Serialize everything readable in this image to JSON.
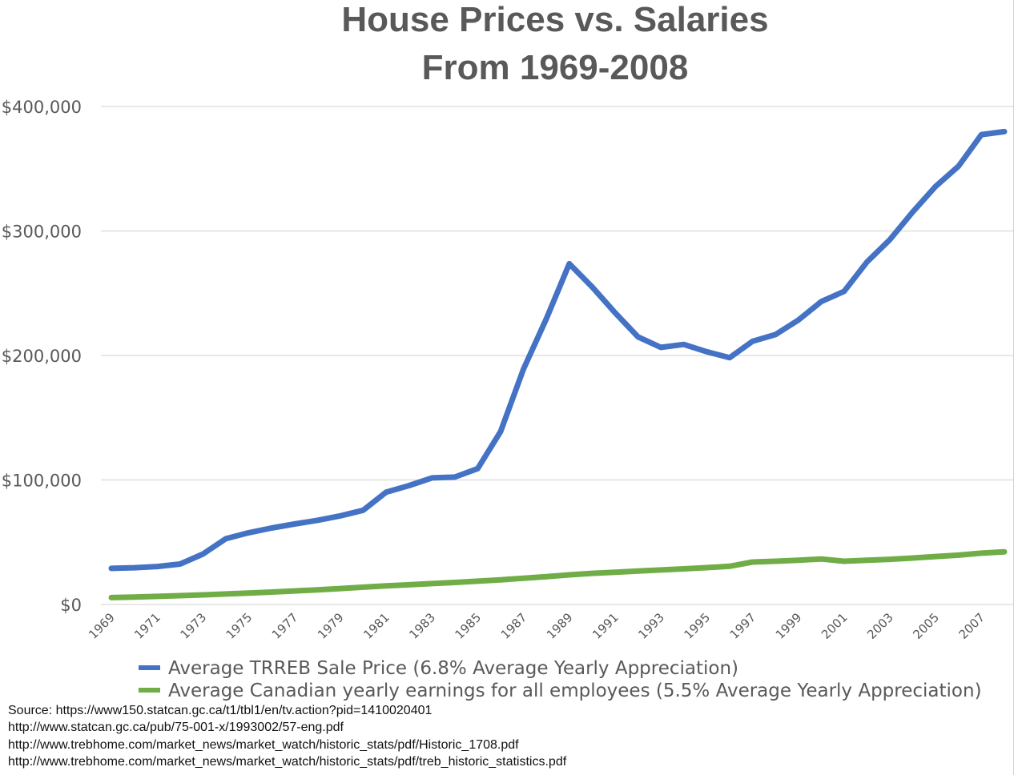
{
  "colors": {
    "background": "#ffffff",
    "text": "#595959",
    "gridline": "#d9d9d9",
    "house_price": "#4472c4",
    "earnings": "#70ad47",
    "sources_text": "#111111"
  },
  "chart_data": {
    "type": "line",
    "title": [
      "House Prices vs. Salaries",
      "From 1969-2008"
    ],
    "ylim": [
      0,
      400000
    ],
    "y_ticks": [
      0,
      100000,
      200000,
      300000,
      400000
    ],
    "y_tick_labels": [
      "$0",
      "$100,000",
      "$200,000",
      "$300,000",
      "$400,000"
    ],
    "x": [
      1969,
      1970,
      1971,
      1972,
      1973,
      1974,
      1975,
      1976,
      1977,
      1978,
      1979,
      1980,
      1981,
      1982,
      1983,
      1984,
      1985,
      1986,
      1987,
      1988,
      1989,
      1990,
      1991,
      1992,
      1993,
      1994,
      1995,
      1996,
      1997,
      1998,
      1999,
      2000,
      2001,
      2002,
      2003,
      2004,
      2005,
      2006,
      2007,
      2008
    ],
    "x_tick_labels": [
      "1969",
      "1971",
      "1973",
      "1975",
      "1977",
      "1979",
      "1981",
      "1983",
      "1985",
      "1987",
      "1989",
      "1991",
      "1993",
      "1995",
      "1997",
      "1999",
      "2001",
      "2003",
      "2005",
      "2007"
    ],
    "grid": true,
    "legend_position": "bottom",
    "series": [
      {
        "name": "Average TRREB Sale Price (6.8% Average Yearly Appreciation)",
        "color": "#4472c4",
        "values": [
          29000,
          29500,
          30500,
          32500,
          40500,
          52800,
          57600,
          61400,
          64600,
          67600,
          71200,
          75700,
          90200,
          95500,
          101700,
          102300,
          109100,
          138900,
          189100,
          229600,
          273700,
          255000,
          234300,
          214900,
          206500,
          208900,
          203000,
          198200,
          211400,
          216800,
          228400,
          243300,
          251500,
          275200,
          293100,
          315300,
          335900,
          352100,
          377400,
          379800
        ]
      },
      {
        "name": "Average Canadian yearly earnings for all employees (5.5% Average Yearly Appreciation)",
        "color": "#70ad47",
        "values": [
          5500,
          6000,
          6500,
          7100,
          7700,
          8400,
          9200,
          10000,
          10900,
          11800,
          12800,
          13900,
          14900,
          15800,
          16800,
          17700,
          18700,
          19800,
          21100,
          22400,
          23800,
          25000,
          25900,
          26800,
          27700,
          28600,
          29600,
          30700,
          34100,
          34700,
          35500,
          36500,
          34700,
          35500,
          36300,
          37300,
          38500,
          39600,
          41200,
          42300
        ]
      }
    ]
  },
  "sources": [
    "Source: https://www150.statcan.gc.ca/t1/tbl1/en/tv.action?pid=1410020401",
    "http://www.statcan.gc.ca/pub/75-001-x/1993002/57-eng.pdf",
    "http://www.trebhome.com/market_news/market_watch/historic_stats/pdf/Historic_1708.pdf",
    "http://www.trebhome.com/market_news/market_watch/historic_stats/pdf/treb_historic_statistics.pdf"
  ]
}
